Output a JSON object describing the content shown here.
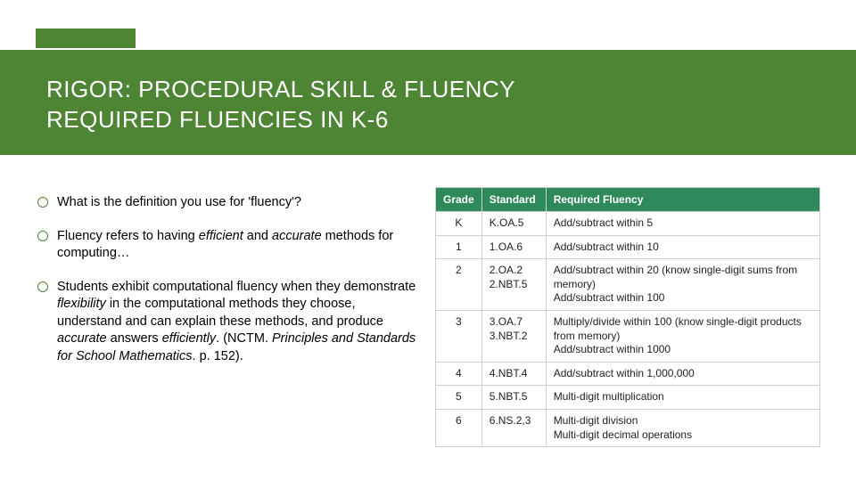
{
  "header": {
    "line1": "RIGOR: PROCEDURAL SKILL & FLUENCY",
    "line2": "REQUIRED FLUENCIES IN K-6"
  },
  "bullets": [
    {
      "html": "What is the definition you use for 'fluency'?"
    },
    {
      "html": "Fluency refers to having <em>efficient</em> and <em>accurate</em> methods for computing…"
    },
    {
      "html": "Students exhibit computational fluency when they demonstrate <em>flexibility</em> in the computational methods they choose, understand and can explain these methods, and produce <em>accurate</em> answers <em>efficiently</em>. (NCTM. <em>Principles and Standards for School Mathematics</em>. p. 152)."
    }
  ],
  "table": {
    "columns": [
      "Grade",
      "Standard",
      "Required Fluency"
    ],
    "rows": [
      [
        "K",
        "K.OA.5",
        "Add/subtract within 5"
      ],
      [
        "1",
        "1.OA.6",
        "Add/subtract within 10"
      ],
      [
        "2",
        "2.OA.2<br>2.NBT.5",
        "Add/subtract within 20 (know single-digit sums from memory)<br>Add/subtract within 100"
      ],
      [
        "3",
        "3.OA.7<br>3.NBT.2",
        "Multiply/divide within 100 (know single-digit products from memory)<br>Add/subtract within 1000"
      ],
      [
        "4",
        "4.NBT.4",
        "Add/subtract within 1,000,000"
      ],
      [
        "5",
        "5.NBT.5",
        "Multi-digit multiplication"
      ],
      [
        "6",
        "6.NS.2,3",
        "Multi-digit division<br>Multi-digit decimal operations"
      ]
    ],
    "header_bg": "#2f8a5b",
    "header_fg": "#ffffff",
    "border_color": "#cfcfcf",
    "font_size": 12
  },
  "colors": {
    "accent": "#4e8534",
    "background": "#ffffff"
  }
}
